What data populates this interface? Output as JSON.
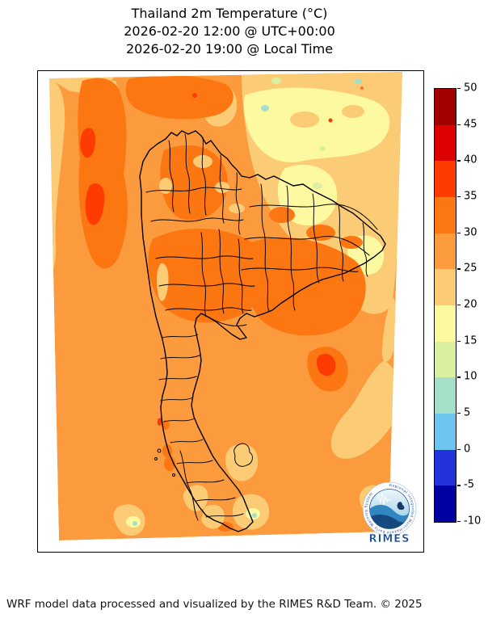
{
  "figure": {
    "title_lines": [
      "Thailand 2m Temperature (°C)",
      "2026-02-20 12:00 @ UTC+00:00",
      "2026-02-20 19:00 @ Local Time"
    ],
    "footer": "WRF model data processed and visualized by the RIMES R&D Team. © 2025"
  },
  "map": {
    "region": "Thailand",
    "border_color": "#000000",
    "background": "#ffffff"
  },
  "palette": {
    "t45_50": "#a00000",
    "t40_45": "#dc0000",
    "t35_40": "#fe3b00",
    "t30_35": "#fc7612",
    "t25_30": "#fc9a3e",
    "t20_25": "#fccb75",
    "t15_20": "#fdf9a0",
    "t10_15": "#d8f0a0",
    "t5_10": "#a6dfc8",
    "t0_5": "#6ec6f0",
    "tm5_0": "#2233dd",
    "tm10_m5": "#0000a0"
  },
  "colorbar": {
    "tick_labels": [
      "50",
      "45",
      "40",
      "35",
      "30",
      "25",
      "20",
      "15",
      "10",
      "5",
      "0",
      "-5",
      "-10"
    ],
    "segment_colors_top_to_bottom": [
      "#a00000",
      "#dc0000",
      "#fe3b00",
      "#fc7612",
      "#fc9a3e",
      "#fccb75",
      "#fdf9a0",
      "#d8f0a0",
      "#a6dfc8",
      "#6ec6f0",
      "#2233dd",
      "#0000a0"
    ]
  },
  "logo": {
    "label": "RIMES",
    "ring_text": "Regional Integrated Multi-Hazard Early Warning System",
    "text_color": "#164a9e"
  },
  "chart_data": {
    "type": "heatmap",
    "title": "Thailand 2m Temperature (°C)",
    "subtitle_utc": "2026-02-20 12:00 @ UTC+00:00",
    "subtitle_local": "2026-02-20 19:00 @ Local Time",
    "units": "°C",
    "colorbar_ticks": [
      50,
      45,
      40,
      35,
      30,
      25,
      20,
      15,
      10,
      5,
      0,
      -5,
      -10
    ],
    "colorbar_range": [
      -10,
      50
    ],
    "legend_position": "right",
    "observed_values": {
      "dominant_sea_and_plains_c": "25-30",
      "central_northeast_cambodia_patches_c": "30-35",
      "western_myanmar_hotspots_c": "35-40",
      "laos_vietnam_highlands_c": "15-25",
      "coolest_mountain_dots_c": "5-15"
    }
  }
}
